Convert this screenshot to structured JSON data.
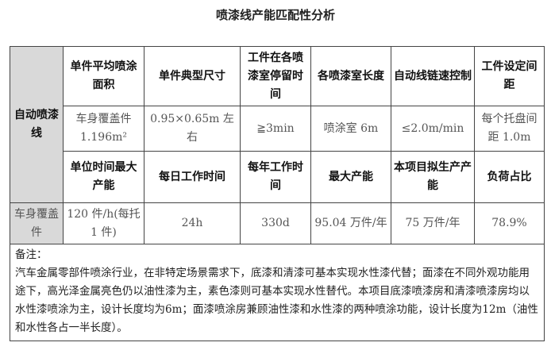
{
  "title": "喷漆线产能匹配性分析",
  "row_label": "自动喷漆线",
  "header1": [
    "单件平均喷涂面积",
    "单件典型尺寸",
    "工件在各喷漆室停留时间",
    "各喷漆室长度",
    "自动线链速控制",
    "工件设定间距"
  ],
  "values1": [
    "车身覆盖件 1.196m²",
    "0.95×0.65m 左右",
    "≧3min",
    "喷涂室 6m",
    "≤2.0m/min",
    "每个托盘间距 1.0m"
  ],
  "header2": [
    "单位时间最大产能",
    "每日工作时间",
    "每年工作时间",
    "最大产能",
    "本项目拟生产产能",
    "负荷占比"
  ],
  "product_label": "车身覆盖件",
  "values2": [
    "120 件/h(每托 1 件)",
    "24h",
    "330d",
    "95.04 万件/年",
    "75 万件/年",
    "78.9%"
  ],
  "note_label": "备注：",
  "note_text": "汽车金属零部件喷涂行业，在非特定场景需求下，底漆和清漆可基本实现水性漆代替；面漆在不同外观功能用途下，高光泽金属亮色仍以油性漆为主，素色漆则可基本实现水性替代。本项目底漆喷漆房和清漆喷漆房均以水性漆喷涂为主，设计长度均为6m；面漆喷涂房兼顾油性漆和水性漆的两种喷涂功能，设计长度为12m（油性和水性各占一半长度）。"
}
